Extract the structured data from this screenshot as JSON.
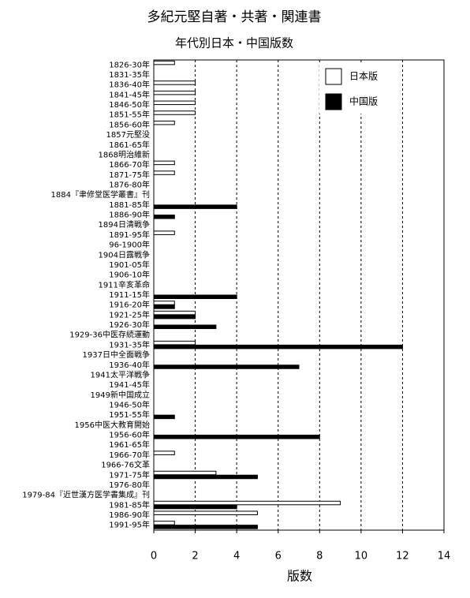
{
  "chart_data": {
    "type": "hbar",
    "title": "多紀元堅自著・共著・関連書",
    "subtitle": "年代別日本・中国版数",
    "x_label": "版数",
    "categories": [
      "1826-30年",
      "1831-35年",
      "1836-40年",
      "1841-45年",
      "1846-50年",
      "1851-55年",
      "1856-60年",
      "1857元堅没",
      "1861-65年",
      "1868明治維新",
      "1866-70年",
      "1871-75年",
      "1876-80年",
      "1884『聿修堂医学叢書』刊",
      "1881-85年",
      "1886-90年",
      "1894日清戦争",
      "1891-95年",
      "96-1900年",
      "1904日露戦争",
      "1901-05年",
      "1906-10年",
      "1911辛亥革命",
      "1911-15年",
      "1916-20年",
      "1921-25年",
      "1926-30年",
      "1929-36中医存続運動",
      "1931-35年",
      "1937日中全面戦争",
      "1936-40年",
      "1941太平洋戦争",
      "1941-45年",
      "1949新中国成立",
      "1946-50年",
      "1951-55年",
      "1956中医大教育開始",
      "1956-60年",
      "1961-65年",
      "1966-70年",
      "1966-76文革",
      "1971-75年",
      "1976-80年",
      "1979-84『近世漢方医学書集成』刊",
      "1981-85年",
      "1986-90年",
      "1991-95年"
    ],
    "series": [
      {
        "name": "日本版",
        "color": "#ffffff",
        "values": [
          1,
          0,
          2,
          2,
          2,
          2,
          1,
          null,
          0,
          null,
          1,
          1,
          0,
          null,
          0,
          0,
          null,
          1,
          0,
          null,
          0,
          0,
          null,
          0,
          1,
          2,
          0,
          null,
          2,
          null,
          0,
          null,
          0,
          null,
          0,
          0,
          null,
          0,
          0,
          1,
          null,
          3,
          0,
          null,
          9,
          5,
          1
        ]
      },
      {
        "name": "中国版",
        "color": "#000000",
        "values": [
          0,
          0,
          0,
          0,
          0,
          0,
          0,
          null,
          0,
          null,
          0,
          0,
          0,
          null,
          4,
          1,
          null,
          0,
          0,
          null,
          0,
          0,
          null,
          4,
          1,
          2,
          3,
          null,
          12,
          null,
          7,
          null,
          0,
          null,
          0,
          1,
          null,
          8,
          0,
          0,
          null,
          5,
          0,
          null,
          4,
          0,
          5
        ]
      }
    ],
    "xlim": [
      0,
      14
    ],
    "xticks": [
      0,
      2,
      4,
      6,
      8,
      10,
      12,
      14
    ],
    "grid": true,
    "legend": "upper right"
  }
}
